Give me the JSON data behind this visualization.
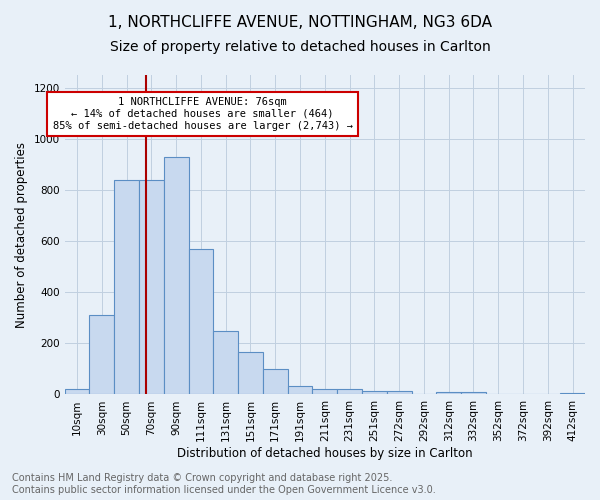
{
  "title_line1": "1, NORTHCLIFFE AVENUE, NOTTINGHAM, NG3 6DA",
  "title_line2": "Size of property relative to detached houses in Carlton",
  "xlabel": "Distribution of detached houses by size in Carlton",
  "ylabel": "Number of detached properties",
  "categories": [
    "10sqm",
    "30sqm",
    "50sqm",
    "70sqm",
    "90sqm",
    "111sqm",
    "131sqm",
    "151sqm",
    "171sqm",
    "191sqm",
    "211sqm",
    "231sqm",
    "251sqm",
    "272sqm",
    "292sqm",
    "312sqm",
    "332sqm",
    "352sqm",
    "372sqm",
    "392sqm",
    "412sqm"
  ],
  "values": [
    20,
    310,
    840,
    840,
    930,
    570,
    248,
    165,
    100,
    35,
    20,
    20,
    15,
    12,
    0,
    10,
    10,
    0,
    0,
    0,
    5
  ],
  "bar_color": "#c8d9ef",
  "bar_edge_color": "#5b8ec4",
  "grid_color": "#c0cfe0",
  "bg_color": "#e8f0f8",
  "property_line_color": "#aa0000",
  "annotation_text": "1 NORTHCLIFFE AVENUE: 76sqm\n← 14% of detached houses are smaller (464)\n85% of semi-detached houses are larger (2,743) →",
  "annotation_box_color": "#ffffff",
  "annotation_box_edge": "#cc0000",
  "footer_text": "Contains HM Land Registry data © Crown copyright and database right 2025.\nContains public sector information licensed under the Open Government Licence v3.0.",
  "ylim": [
    0,
    1250
  ],
  "yticks": [
    0,
    200,
    400,
    600,
    800,
    1000,
    1200
  ],
  "footer_color": "#666666",
  "title_fontsize": 11,
  "subtitle_fontsize": 10,
  "axis_label_fontsize": 8.5,
  "tick_fontsize": 7.5,
  "footer_fontsize": 7,
  "annot_fontsize": 7.5
}
